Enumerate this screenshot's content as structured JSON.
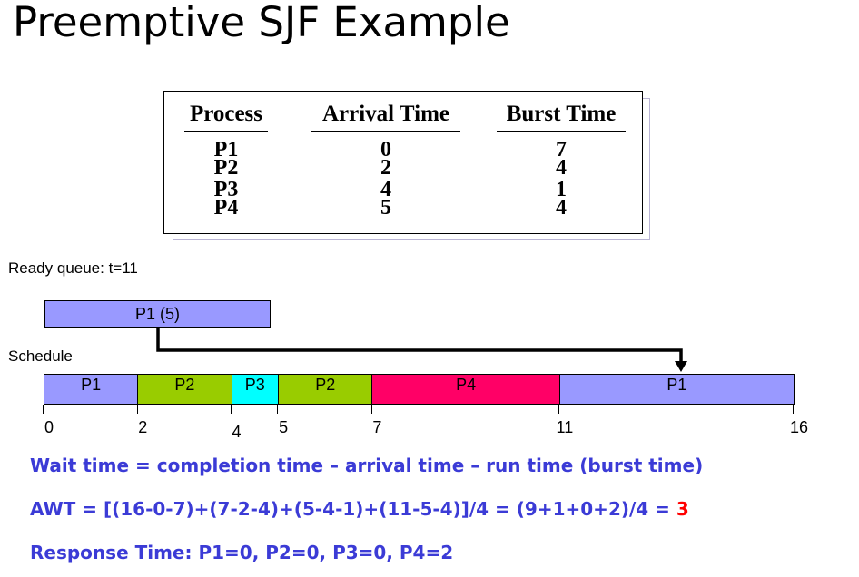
{
  "title": "Preemptive SJF Example",
  "table": {
    "headers": [
      "Process",
      "Arrival Time",
      "Burst Time"
    ],
    "rows": [
      {
        "process": "P1",
        "arrival": "0",
        "burst": "7"
      },
      {
        "process": "P2",
        "arrival": "2",
        "burst": "4"
      },
      {
        "process": "P3",
        "arrival": "4",
        "burst": "1"
      },
      {
        "process": "P4",
        "arrival": "5",
        "burst": "4"
      }
    ]
  },
  "ready_queue": {
    "label": "Ready queue: t=11",
    "item": "P1 (5)"
  },
  "schedule": {
    "label": "Schedule",
    "segments": [
      {
        "label": "P1",
        "start": 0,
        "end": 2,
        "color": "#9999ff"
      },
      {
        "label": "P2",
        "start": 2,
        "end": 4,
        "color": "#99cc00"
      },
      {
        "label": "P3",
        "start": 4,
        "end": 5,
        "color": "#00ffff"
      },
      {
        "label": "P2",
        "start": 5,
        "end": 7,
        "color": "#99cc00"
      },
      {
        "label": "P4",
        "start": 7,
        "end": 11,
        "color": "#ff0066"
      },
      {
        "label": "P1",
        "start": 11,
        "end": 16,
        "color": "#9999ff"
      }
    ],
    "ticks": [
      "0",
      "2",
      "4",
      "5",
      "7",
      "11",
      "16"
    ]
  },
  "equations": {
    "wait_time": "Wait time = completion time – arrival time – run time (burst time)",
    "awt_prefix": "AWT = [(16-0-7)+(7-2-4)+(5-4-1)+(11-5-4)]/4 = (9+1+0+2)/4 = ",
    "awt_result": "3",
    "response_time": "Response Time: P1=0, P2=0, P3=0, P4=2"
  },
  "colors": {
    "p1": "#9999ff",
    "p2": "#99cc00",
    "p3": "#00ffff",
    "p4": "#ff0066",
    "equation_text": "#3b3bd6",
    "result": "#ff0000"
  }
}
